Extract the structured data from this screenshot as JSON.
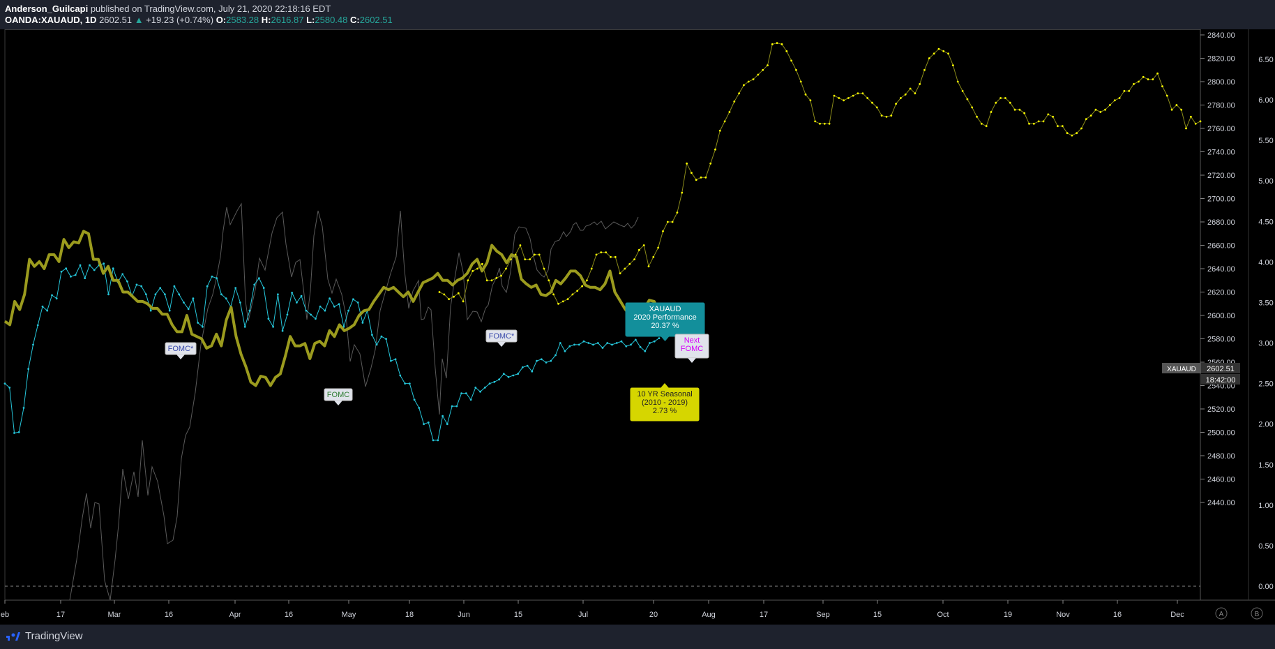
{
  "header": {
    "author": "Anderson_Guilcapi",
    "published": "published on TradingView.com, July 21, 2020 22:18:16 EDT",
    "symbol": "OANDA:XAUAUD, 1D",
    "last": "2602.51",
    "change": "+19.23 (+0.74%)",
    "o_label": "O:",
    "o": "2583.28",
    "h_label": "H:",
    "h": "2616.87",
    "l_label": "L:",
    "l": "2580.48",
    "c_label": "C:",
    "c": "2602.51",
    "up_arrow": "▲"
  },
  "footer": {
    "brand": "TradingView"
  },
  "colors": {
    "background": "#000000",
    "price": "#8a8a1a",
    "price_line": "#9b9b1e",
    "seasonal": "#ffff00",
    "performance": "#26c6da",
    "ghost": "#5a5a5a",
    "panel": "#1e222d",
    "axis_text": "#d1d4dc"
  },
  "chart_data": {
    "type": "line",
    "x_tick_labels": [
      "eb",
      "17",
      "Mar",
      "16",
      "Apr",
      "16",
      "May",
      "18",
      "Jun",
      "15",
      "Jul",
      "20",
      "Aug",
      "17",
      "Sep",
      "15",
      "Oct",
      "19",
      "Nov",
      "16",
      "Dec"
    ],
    "y_left_ticks": [
      "2840.00",
      "2820.00",
      "2800.00",
      "2780.00",
      "2760.00",
      "2740.00",
      "2720.00",
      "2700.00",
      "2680.00",
      "2660.00",
      "2640.00",
      "2620.00",
      "2600.00",
      "2580.00",
      "2560.00",
      "2540.00",
      "2520.00",
      "2500.00",
      "2480.00",
      "2460.00",
      "2440.00"
    ],
    "y_right_ticks": [
      "6.50",
      "6.00",
      "5.50",
      "5.00",
      "4.50",
      "4.00",
      "3.50",
      "3.00",
      "2.50",
      "2.00",
      "1.50",
      "1.00",
      "0.50",
      "0.00"
    ],
    "ylim": [
      2428,
      2846
    ],
    "series": [
      {
        "name": "XAUAUD",
        "values": [
          2595,
          2592,
          2612,
          2605,
          2618,
          2648,
          2642,
          2646,
          2640,
          2652,
          2652,
          2646,
          2665,
          2658,
          2663,
          2662,
          2672,
          2670,
          2648,
          2648,
          2636,
          2642,
          2630,
          2630,
          2620,
          2620,
          2616,
          2612,
          2612,
          2610,
          2606,
          2606,
          2601,
          2601,
          2592,
          2586,
          2586,
          2600,
          2584,
          2582,
          2580,
          2572,
          2574,
          2584,
          2574,
          2596,
          2607,
          2582,
          2567,
          2556,
          2543,
          2540,
          2548,
          2547,
          2540,
          2547,
          2550,
          2565,
          2582,
          2574,
          2574,
          2576,
          2563,
          2576,
          2578,
          2574,
          2587,
          2582,
          2592,
          2587,
          2589,
          2592,
          2600,
          2604,
          2605,
          2612,
          2618,
          2624,
          2622,
          2624,
          2620,
          2616,
          2620,
          2612,
          2620,
          2628,
          2630,
          2632,
          2636,
          2630,
          2630,
          2626,
          2630,
          2632,
          2636,
          2644,
          2648,
          2638,
          2645,
          2660,
          2655,
          2652,
          2645,
          2652,
          2650,
          2631,
          2627,
          2624,
          2626,
          2618,
          2617,
          2620,
          2630,
          2627,
          2632,
          2638,
          2638,
          2634,
          2626,
          2624,
          2624,
          2622,
          2627,
          2638,
          2620,
          2613,
          2606,
          2600,
          2593,
          2599,
          2606,
          2613,
          2612,
          2603
        ]
      },
      {
        "name": "10 YR Seasonal (2010 - 2019)",
        "values": [
          2620,
          2618,
          2614,
          2616,
          2619,
          2612,
          2630,
          2638,
          2640,
          2644,
          2630,
          2630,
          2632,
          2634,
          2640,
          2648,
          2652,
          2660,
          2648,
          2648,
          2652,
          2652,
          2640,
          2630,
          2618,
          2610,
          2612,
          2614,
          2618,
          2621,
          2625,
          2630,
          2640,
          2652,
          2654,
          2654,
          2650,
          2650,
          2636,
          2640,
          2644,
          2648,
          2656,
          2660,
          2642,
          2650,
          2658,
          2672,
          2680,
          2680,
          2688,
          2705,
          2730,
          2722,
          2716,
          2718,
          2718,
          2730,
          2742,
          2758,
          2766,
          2774,
          2783,
          2790,
          2797,
          2800,
          2802,
          2806,
          2810,
          2814,
          2832,
          2833,
          2832,
          2826,
          2818,
          2810,
          2800,
          2789,
          2784,
          2766,
          2764,
          2764,
          2764,
          2788,
          2786,
          2784,
          2786,
          2788,
          2790,
          2790,
          2786,
          2782,
          2778,
          2771,
          2770,
          2771,
          2781,
          2786,
          2789,
          2794,
          2790,
          2798,
          2810,
          2820,
          2824,
          2828,
          2826,
          2824,
          2814,
          2800,
          2792,
          2785,
          2778,
          2770,
          2764,
          2762,
          2774,
          2782,
          2786,
          2786,
          2782,
          2776,
          2776,
          2773,
          2764,
          2764,
          2766,
          2766,
          2772,
          2770,
          2762,
          2762,
          2756,
          2754,
          2756,
          2760,
          2768,
          2771,
          2776,
          2774,
          2776,
          2780,
          2784,
          2786,
          2792,
          2792,
          2798,
          2800,
          2804,
          2802,
          2802,
          2807,
          2796,
          2788,
          2776,
          2780,
          2776,
          2760,
          2770,
          2764,
          2766
        ]
      },
      {
        "name": "XAUAUD 2020 Performance",
        "values": [
          2.5,
          2.45,
          1.89,
          1.9,
          2.2,
          2.68,
          2.98,
          3.22,
          3.45,
          3.4,
          3.59,
          3.55,
          3.88,
          3.92,
          3.82,
          3.84,
          3.96,
          3.8,
          3.96,
          3.9,
          3.96,
          3.98,
          3.6,
          3.92,
          3.75,
          3.85,
          3.76,
          3.58,
          3.72,
          3.7,
          3.6,
          3.4,
          3.6,
          3.68,
          3.6,
          3.4,
          3.7,
          3.6,
          3.5,
          3.42,
          3.55,
          3.25,
          3.2,
          3.7,
          3.82,
          3.8,
          3.6,
          3.55,
          3.45,
          3.68,
          3.5,
          3.2,
          3.4,
          3.72,
          3.8,
          3.68,
          3.3,
          3.2,
          3.6,
          3.15,
          3.35,
          3.62,
          3.5,
          3.58,
          3.4,
          3.35,
          3.3,
          3.45,
          3.4,
          3.55,
          3.45,
          3.48,
          3.2,
          3.4,
          3.54,
          3.5,
          3.25,
          3.4,
          3.1,
          2.98,
          3.08,
          3.05,
          2.78,
          2.8,
          2.6,
          2.5,
          2.5,
          2.3,
          2.2,
          2.0,
          2.02,
          1.8,
          1.8,
          2.1,
          2.0,
          2.22,
          2.22,
          2.38,
          2.38,
          2.3,
          2.45,
          2.4,
          2.45,
          2.5,
          2.52,
          2.55,
          2.62,
          2.58,
          2.6,
          2.62,
          2.7,
          2.72,
          2.65,
          2.78,
          2.8,
          2.76,
          2.78,
          2.85,
          3.0,
          2.9,
          2.96,
          2.98,
          2.98,
          3.02,
          3.0,
          2.98,
          3.0,
          2.94,
          3.0,
          2.98,
          3.0,
          3.02,
          2.96,
          2.98,
          3.04,
          2.95,
          2.9,
          3.0,
          3.02,
          3.06
        ]
      }
    ],
    "annotations": {
      "perf_label_1": "XAUAUD",
      "perf_label_2": "2020 Performance",
      "perf_label_3": "20.37 %",
      "seasonal_label_1": "10 YR Seasonal",
      "seasonal_label_2": "(2010 - 2019)",
      "seasonal_label_3": "2.73 %",
      "next_fomc_1": "Next",
      "next_fomc_2": "FOMC",
      "fomc_1": "FOMC*",
      "fomc_2": "FOMC",
      "fomc_3": "FOMC*",
      "price_tag_symbol": "XAUAUD",
      "price_tag_value": "2602.51",
      "price_tag_time": "18:42:00",
      "btn_a": "A",
      "btn_b": "B"
    }
  }
}
